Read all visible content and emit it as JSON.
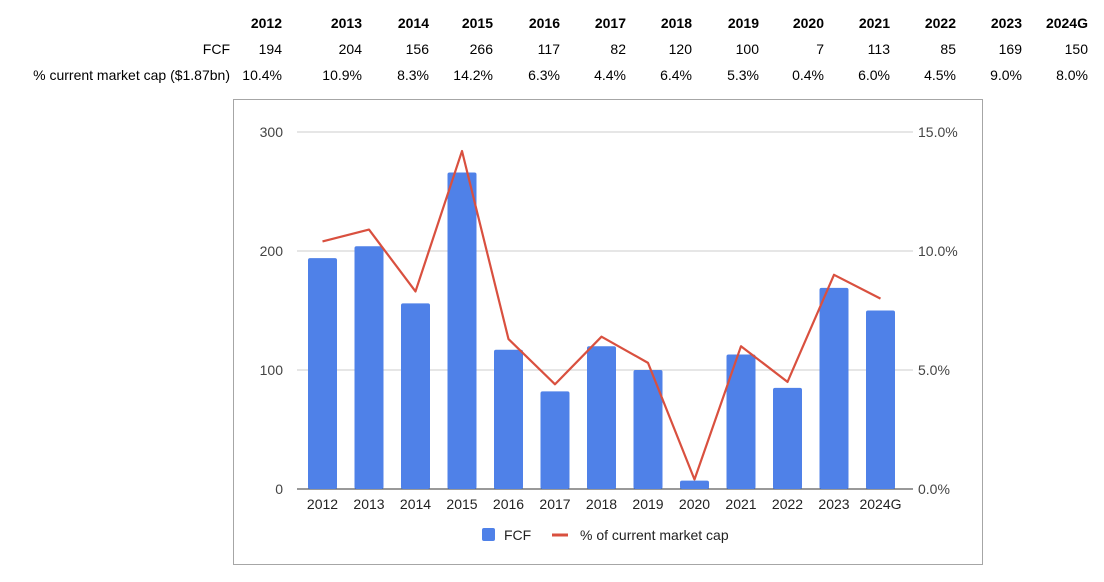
{
  "table": {
    "years": [
      "2012",
      "2013",
      "2014",
      "2015",
      "2016",
      "2017",
      "2018",
      "2019",
      "2020",
      "2021",
      "2022",
      "2023",
      "2024G"
    ],
    "rows": [
      {
        "label": "FCF",
        "values": [
          "194",
          "204",
          "156",
          "266",
          "117",
          "82",
          "120",
          "100",
          "7",
          "113",
          "85",
          "169",
          "150"
        ]
      },
      {
        "label": "% current market cap ($1.87bn)",
        "values": [
          "10.4%",
          "10.9%",
          "8.3%",
          "14.2%",
          "6.3%",
          "4.4%",
          "6.4%",
          "5.3%",
          "0.4%",
          "6.0%",
          "4.5%",
          "9.0%",
          "8.0%"
        ]
      }
    ]
  },
  "chart_data": {
    "type": "bar",
    "categories": [
      "2012",
      "2013",
      "2014",
      "2015",
      "2016",
      "2017",
      "2018",
      "2019",
      "2020",
      "2021",
      "2022",
      "2023",
      "2024G"
    ],
    "series": [
      {
        "name": "FCF",
        "type": "bar",
        "axis": "left",
        "color": "#4f81e8",
        "values": [
          194,
          204,
          156,
          266,
          117,
          82,
          120,
          100,
          7,
          113,
          85,
          169,
          150
        ]
      },
      {
        "name": "% of current market cap",
        "type": "line",
        "axis": "right",
        "color": "#d9503f",
        "values": [
          10.4,
          10.9,
          8.3,
          14.2,
          6.3,
          4.4,
          6.4,
          5.3,
          0.4,
          6.0,
          4.5,
          9.0,
          8.0
        ]
      }
    ],
    "y_left": {
      "ylim": [
        0,
        300
      ],
      "ticks": [
        "0",
        "100",
        "200",
        "300"
      ],
      "tick_values": [
        0,
        100,
        200,
        300
      ]
    },
    "y_right": {
      "ylim": [
        0,
        15
      ],
      "ticks": [
        "0.0%",
        "5.0%",
        "10.0%",
        "15.0%"
      ],
      "tick_values": [
        0,
        5,
        10,
        15
      ]
    },
    "grid": true,
    "legend_position": "bottom"
  }
}
